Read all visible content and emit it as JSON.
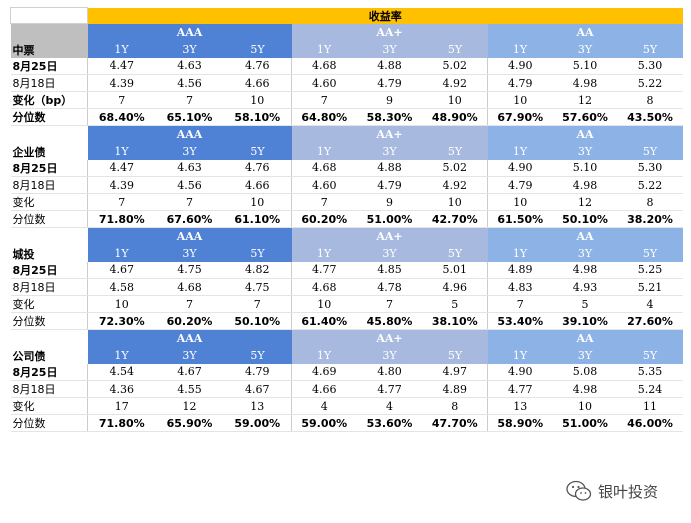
{
  "header": {
    "yield_title": "收益率"
  },
  "grades": [
    {
      "name": "AAA",
      "terms": [
        "1Y",
        "3Y",
        "5Y"
      ],
      "color": "#4f81d5"
    },
    {
      "name": "AA+",
      "terms": [
        "1Y",
        "3Y",
        "5Y"
      ],
      "color": "#a7b9df"
    },
    {
      "name": "AA",
      "terms": [
        "1Y",
        "3Y",
        "5Y"
      ],
      "color": "#8db2e6"
    }
  ],
  "sections": [
    {
      "title": "中票",
      "rows": [
        {
          "label": "8月25日",
          "values": [
            "4.47",
            "4.63",
            "4.76",
            "4.68",
            "4.88",
            "5.02",
            "4.90",
            "5.10",
            "5.30"
          ]
        },
        {
          "label": "8月18日",
          "values": [
            "4.39",
            "4.56",
            "4.66",
            "4.60",
            "4.79",
            "4.92",
            "4.79",
            "4.98",
            "5.22"
          ]
        },
        {
          "label": "变化（bp）",
          "values": [
            "7",
            "7",
            "10",
            "7",
            "9",
            "10",
            "10",
            "12",
            "8"
          ]
        },
        {
          "label": "分位数",
          "values": [
            "68.40%",
            "65.10%",
            "58.10%",
            "64.80%",
            "58.30%",
            "48.90%",
            "67.90%",
            "57.60%",
            "43.50%"
          ]
        }
      ]
    },
    {
      "title": "企业债",
      "rows": [
        {
          "label": "8月25日",
          "values": [
            "4.47",
            "4.63",
            "4.76",
            "4.68",
            "4.88",
            "5.02",
            "4.90",
            "5.10",
            "5.30"
          ]
        },
        {
          "label": "8月18日",
          "values": [
            "4.39",
            "4.56",
            "4.66",
            "4.60",
            "4.79",
            "4.92",
            "4.79",
            "4.98",
            "5.22"
          ]
        },
        {
          "label": "变化",
          "values": [
            "7",
            "7",
            "10",
            "7",
            "9",
            "10",
            "10",
            "12",
            "8"
          ]
        },
        {
          "label": "分位数",
          "values": [
            "71.80%",
            "67.60%",
            "61.10%",
            "60.20%",
            "51.00%",
            "42.70%",
            "61.50%",
            "50.10%",
            "38.20%"
          ]
        }
      ]
    },
    {
      "title": "城投",
      "rows": [
        {
          "label": "8月25日",
          "values": [
            "4.67",
            "4.75",
            "4.82",
            "4.77",
            "4.85",
            "5.01",
            "4.89",
            "4.98",
            "5.25"
          ]
        },
        {
          "label": "8月18日",
          "values": [
            "4.58",
            "4.68",
            "4.75",
            "4.68",
            "4.78",
            "4.96",
            "4.83",
            "4.93",
            "5.21"
          ]
        },
        {
          "label": "变化",
          "values": [
            "10",
            "7",
            "7",
            "10",
            "7",
            "5",
            "7",
            "5",
            "4"
          ]
        },
        {
          "label": "分位数",
          "values": [
            "72.30%",
            "60.20%",
            "50.10%",
            "61.40%",
            "45.80%",
            "38.10%",
            "53.40%",
            "39.10%",
            "27.60%"
          ]
        }
      ]
    },
    {
      "title": "公司债",
      "rows": [
        {
          "label": "8月25日",
          "values": [
            "4.54",
            "4.67",
            "4.79",
            "4.69",
            "4.80",
            "4.97",
            "4.90",
            "5.08",
            "5.35"
          ]
        },
        {
          "label": "8月18日",
          "values": [
            "4.36",
            "4.55",
            "4.67",
            "4.66",
            "4.77",
            "4.89",
            "4.77",
            "4.98",
            "5.24"
          ]
        },
        {
          "label": "变化",
          "values": [
            "17",
            "12",
            "13",
            "4",
            "4",
            "8",
            "13",
            "10",
            "11"
          ]
        },
        {
          "label": "分位数",
          "values": [
            "71.80%",
            "65.90%",
            "59.00%",
            "59.00%",
            "53.60%",
            "47.70%",
            "58.90%",
            "51.00%",
            "46.00%"
          ]
        }
      ]
    }
  ],
  "watermark": {
    "text": "银叶投资",
    "icon": "wechat-icon"
  }
}
